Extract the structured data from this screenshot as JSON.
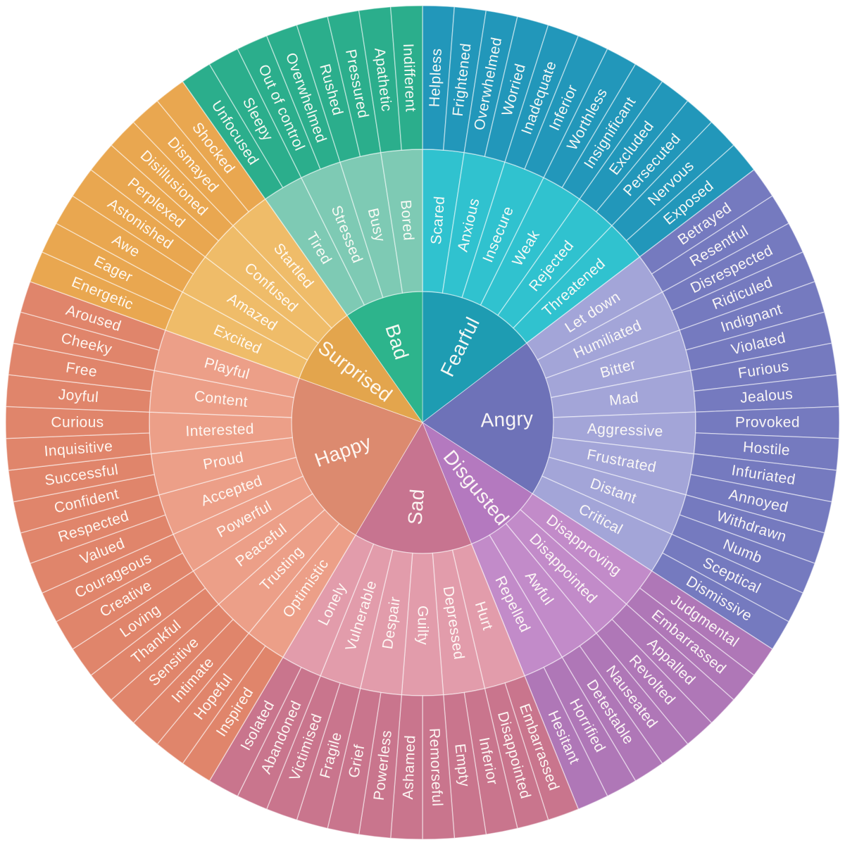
{
  "chart_data": {
    "type": "sunburst",
    "description": "Emotion wheel: three concentric rings of feelings. Inner ring = 7 core emotions, middle ring = 41 secondary emotions, outer ring = 82 tertiary emotions. Starts at 12 o'clock with Fearful, proceeding clockwise.",
    "legend_position": "none",
    "grid": false,
    "rings": [
      "core",
      "secondary",
      "tertiary"
    ],
    "sections": [
      {
        "name": "Fearful",
        "color_inner": "#1E9CB2",
        "color_middle": "#30C2CF",
        "color_outer": "#2297BA",
        "children": [
          {
            "name": "Scared",
            "children": [
              "Helpless",
              "Frightened"
            ]
          },
          {
            "name": "Anxious",
            "children": [
              "Overwhelmed",
              "Worried"
            ]
          },
          {
            "name": "Insecure",
            "children": [
              "Inadequate",
              "Inferior"
            ]
          },
          {
            "name": "Weak",
            "children": [
              "Worthless",
              "Insignificant"
            ]
          },
          {
            "name": "Rejected",
            "children": [
              "Excluded",
              "Persecuted"
            ]
          },
          {
            "name": "Threatened",
            "children": [
              "Nervous",
              "Exposed"
            ]
          }
        ]
      },
      {
        "name": "Angry",
        "color_inner": "#6E72B8",
        "color_middle": "#A3A5D8",
        "color_outer": "#757ABF",
        "children": [
          {
            "name": "Let down",
            "children": [
              "Betrayed",
              "Resentful"
            ]
          },
          {
            "name": "Humiliated",
            "children": [
              "Disrespected",
              "Ridiculed"
            ]
          },
          {
            "name": "Bitter",
            "children": [
              "Indignant",
              "Violated"
            ]
          },
          {
            "name": "Mad",
            "children": [
              "Furious",
              "Jealous"
            ]
          },
          {
            "name": "Aggressive",
            "children": [
              "Provoked",
              "Hostile"
            ]
          },
          {
            "name": "Frustrated",
            "children": [
              "Infuriated",
              "Annoyed"
            ]
          },
          {
            "name": "Distant",
            "children": [
              "Withdrawn",
              "Numb"
            ]
          },
          {
            "name": "Critical",
            "children": [
              "Sceptical",
              "Dismissive"
            ]
          }
        ]
      },
      {
        "name": "Disgusted",
        "color_inner": "#B479BF",
        "color_middle": "#C28BC9",
        "color_outer": "#AF77B7",
        "children": [
          {
            "name": "Disapproving",
            "children": [
              "Judgmental",
              "Embarrassed"
            ]
          },
          {
            "name": "Disappointed",
            "children": [
              "Appalled",
              "Revolted"
            ]
          },
          {
            "name": "Awful",
            "children": [
              "Nauseated",
              "Detestable"
            ]
          },
          {
            "name": "Repelled",
            "children": [
              "Horrified",
              "Hesitant"
            ]
          }
        ]
      },
      {
        "name": "Sad",
        "color_inner": "#C77490",
        "color_middle": "#E29CAB",
        "color_outer": "#C9758D",
        "children": [
          {
            "name": "Hurt",
            "children": [
              "Embarrassed",
              "Disappointed"
            ]
          },
          {
            "name": "Depressed",
            "children": [
              "Inferior",
              "Empty"
            ]
          },
          {
            "name": "Guilty",
            "children": [
              "Remorseful",
              "Ashamed"
            ]
          },
          {
            "name": "Despair",
            "children": [
              "Powerless",
              "Grief"
            ]
          },
          {
            "name": "Vulnerable",
            "children": [
              "Fragile",
              "Victimised"
            ]
          },
          {
            "name": "Lonely",
            "children": [
              "Abandoned",
              "Isolated"
            ]
          }
        ]
      },
      {
        "name": "Happy",
        "color_inner": "#DC8A6F",
        "color_middle": "#EC9F88",
        "color_outer": "#E0856B",
        "children": [
          {
            "name": "Optimistic",
            "children": [
              "Inspired",
              "Hopeful"
            ]
          },
          {
            "name": "Trusting",
            "children": [
              "Intimate",
              "Sensitive"
            ]
          },
          {
            "name": "Peaceful",
            "children": [
              "Thankful",
              "Loving"
            ]
          },
          {
            "name": "Powerful",
            "children": [
              "Creative",
              "Courageous"
            ]
          },
          {
            "name": "Accepted",
            "children": [
              "Valued",
              "Respected"
            ]
          },
          {
            "name": "Proud",
            "children": [
              "Confident",
              "Successful"
            ]
          },
          {
            "name": "Interested",
            "children": [
              "Inquisitive",
              "Curious"
            ]
          },
          {
            "name": "Content",
            "children": [
              "Joyful",
              "Free"
            ]
          },
          {
            "name": "Playful",
            "children": [
              "Cheeky",
              "Aroused"
            ]
          }
        ]
      },
      {
        "name": "Surprised",
        "color_inner": "#E3A54D",
        "color_middle": "#EFBC69",
        "color_outer": "#E9A750",
        "children": [
          {
            "name": "Excited",
            "children": [
              "Energetic",
              "Eager"
            ]
          },
          {
            "name": "Amazed",
            "children": [
              "Awe",
              "Astonished"
            ]
          },
          {
            "name": "Confused",
            "children": [
              "Perplexed",
              "Disillusioned"
            ]
          },
          {
            "name": "Startled",
            "children": [
              "Dismayed",
              "Shocked"
            ]
          }
        ]
      },
      {
        "name": "Bad",
        "color_inner": "#2DB48C",
        "color_middle": "#7ECAB4",
        "color_outer": "#2BAE8C",
        "children": [
          {
            "name": "Tired",
            "children": [
              "Unfocused",
              "Sleepy"
            ]
          },
          {
            "name": "Stressed",
            "children": [
              "Out of control",
              "Overwhelmed"
            ]
          },
          {
            "name": "Busy",
            "children": [
              "Rushed",
              "Pressured"
            ]
          },
          {
            "name": "Bored",
            "children": [
              "Apathetic",
              "Indifferent"
            ]
          }
        ]
      }
    ],
    "style": {
      "divider_color": "rgba(255,255,255,0.5)",
      "text_color": "rgba(255,252,248,0.95)",
      "background": "#ffffff"
    }
  }
}
